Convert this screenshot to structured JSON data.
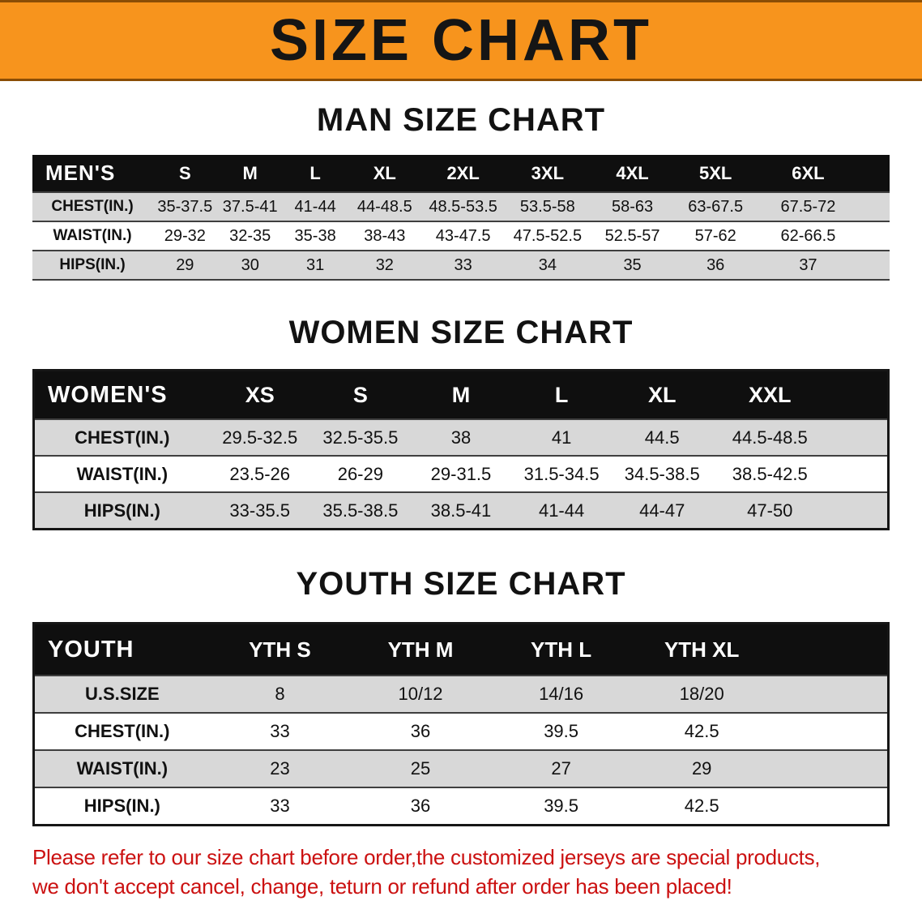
{
  "banner": {
    "title": "SIZE CHART",
    "bg_color": "#f7941d",
    "text_color": "#151515"
  },
  "men": {
    "heading": "MAN SIZE CHART",
    "corner": "MEN'S",
    "sizes": [
      "S",
      "M",
      "L",
      "XL",
      "2XL",
      "3XL",
      "4XL",
      "5XL",
      "6XL"
    ],
    "chest": {
      "label": "CHEST(IN.)",
      "values": [
        "35-37.5",
        "37.5-41",
        "41-44",
        "44-48.5",
        "48.5-53.5",
        "53.5-58",
        "58-63",
        "63-67.5",
        "67.5-72"
      ]
    },
    "waist": {
      "label": "WAIST(IN.)",
      "values": [
        "29-32",
        "32-35",
        "35-38",
        "38-43",
        "43-47.5",
        "47.5-52.5",
        "52.5-57",
        "57-62",
        "62-66.5"
      ]
    },
    "hips": {
      "label": "HIPS(IN.)",
      "values": [
        "29",
        "30",
        "31",
        "32",
        "33",
        "34",
        "35",
        "36",
        "37"
      ]
    }
  },
  "women": {
    "heading": "WOMEN SIZE CHART",
    "corner": "WOMEN'S",
    "sizes": [
      "XS",
      "S",
      "M",
      "L",
      "XL",
      "XXL"
    ],
    "chest": {
      "label": "CHEST(IN.)",
      "values": [
        "29.5-32.5",
        "32.5-35.5",
        "38",
        "41",
        "44.5",
        "44.5-48.5"
      ]
    },
    "waist": {
      "label": "WAIST(IN.)",
      "values": [
        "23.5-26",
        "26-29",
        "29-31.5",
        "31.5-34.5",
        "34.5-38.5",
        "38.5-42.5"
      ]
    },
    "hips": {
      "label": "HIPS(IN.)",
      "values": [
        "33-35.5",
        "35.5-38.5",
        "38.5-41",
        "41-44",
        "44-47",
        "47-50"
      ]
    }
  },
  "youth": {
    "heading": "YOUTH SIZE CHART",
    "corner": "YOUTH",
    "sizes": [
      "YTH S",
      "YTH M",
      "YTH L",
      "YTH XL"
    ],
    "ussize": {
      "label": "U.S.SIZE",
      "values": [
        "8",
        "10/12",
        "14/16",
        "18/20"
      ]
    },
    "chest": {
      "label": "CHEST(IN.)",
      "values": [
        "33",
        "36",
        "39.5",
        "42.5"
      ]
    },
    "waist": {
      "label": "WAIST(IN.)",
      "values": [
        "23",
        "25",
        "27",
        "29"
      ]
    },
    "hips": {
      "label": "HIPS(IN.)",
      "values": [
        "33",
        "36",
        "39.5",
        "42.5"
      ]
    }
  },
  "footer": {
    "line1": "Please refer to our size chart before order,the customized jerseys are special products,",
    "line2": "we don't accept cancel, change, teturn or refund after order has been placed!",
    "text_color": "#cb1111"
  }
}
